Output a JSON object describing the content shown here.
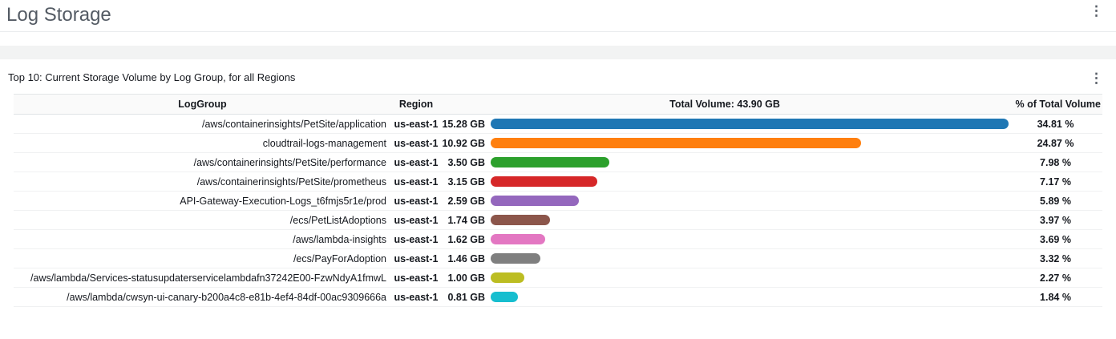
{
  "page": {
    "title": "Log Storage"
  },
  "icons": {
    "kebab": "⋮"
  },
  "widget": {
    "title": "Top 10: Current Storage Volume by Log Group, for all Regions",
    "table": {
      "headers": {
        "log_group": "LogGroup",
        "region": "Region",
        "volume": "Total Volume: 43.90 GB",
        "percent": "% of Total Volume"
      },
      "rows": [
        {
          "log_group": "/aws/containerinsights/PetSite/application",
          "region": "us-east-1",
          "volume": "15.28 GB",
          "percent": "34.81 %",
          "bar_color": "#1f77b4",
          "bar_width_pct": 100
        },
        {
          "log_group": "cloudtrail-logs-management",
          "region": "us-east-1",
          "volume": "10.92 GB",
          "percent": "24.87 %",
          "bar_color": "#ff7f0e",
          "bar_width_pct": 71.5
        },
        {
          "log_group": "/aws/containerinsights/PetSite/performance",
          "region": "us-east-1",
          "volume": "3.50 GB",
          "percent": "7.98 %",
          "bar_color": "#2ca02c",
          "bar_width_pct": 22.9
        },
        {
          "log_group": "/aws/containerinsights/PetSite/prometheus",
          "region": "us-east-1",
          "volume": "3.15 GB",
          "percent": "7.17 %",
          "bar_color": "#d62728",
          "bar_width_pct": 20.6
        },
        {
          "log_group": "API-Gateway-Execution-Logs_t6fmjs5r1e/prod",
          "region": "us-east-1",
          "volume": "2.59 GB",
          "percent": "5.89 %",
          "bar_color": "#9467bd",
          "bar_width_pct": 17.0
        },
        {
          "log_group": "/ecs/PetListAdoptions",
          "region": "us-east-1",
          "volume": "1.74 GB",
          "percent": "3.97 %",
          "bar_color": "#8c564b",
          "bar_width_pct": 11.4
        },
        {
          "log_group": "/aws/lambda-insights",
          "region": "us-east-1",
          "volume": "1.62 GB",
          "percent": "3.69 %",
          "bar_color": "#e377c2",
          "bar_width_pct": 10.6
        },
        {
          "log_group": "/ecs/PayForAdoption",
          "region": "us-east-1",
          "volume": "1.46 GB",
          "percent": "3.32 %",
          "bar_color": "#7f7f7f",
          "bar_width_pct": 9.6
        },
        {
          "log_group": "/aws/lambda/Services-statusupdaterservicelambdafn37242E00-FzwNdyA1fmwL",
          "region": "us-east-1",
          "volume": "1.00 GB",
          "percent": "2.27 %",
          "bar_color": "#bcbd22",
          "bar_width_pct": 6.5
        },
        {
          "log_group": "/aws/lambda/cwsyn-ui-canary-b200a4c8-e81b-4ef4-84df-00ac9309666a",
          "region": "us-east-1",
          "volume": "0.81 GB",
          "percent": "1.84 %",
          "bar_color": "#17becf",
          "bar_width_pct": 5.3
        }
      ]
    }
  },
  "chart_data": {
    "type": "bar",
    "orientation": "horizontal",
    "title": "Top 10: Current Storage Volume by Log Group, for all Regions",
    "total_volume_label": "Total Volume: 43.90 GB",
    "total_volume_gb": 43.9,
    "region": "us-east-1",
    "categories": [
      "/aws/containerinsights/PetSite/application",
      "cloudtrail-logs-management",
      "/aws/containerinsights/PetSite/performance",
      "/aws/containerinsights/PetSite/prometheus",
      "API-Gateway-Execution-Logs_t6fmjs5r1e/prod",
      "/ecs/PetListAdoptions",
      "/aws/lambda-insights",
      "/ecs/PayForAdoption",
      "/aws/lambda/Services-statusupdaterservicelambdafn37242E00-FzwNdyA1fmwL",
      "/aws/lambda/cwsyn-ui-canary-b200a4c8-e81b-4ef4-84df-00ac9309666a"
    ],
    "values_gb": [
      15.28,
      10.92,
      3.5,
      3.15,
      2.59,
      1.74,
      1.62,
      1.46,
      1.0,
      0.81
    ],
    "percent_of_total": [
      34.81,
      24.87,
      7.98,
      7.17,
      5.89,
      3.97,
      3.69,
      3.32,
      2.27,
      1.84
    ],
    "colors": [
      "#1f77b4",
      "#ff7f0e",
      "#2ca02c",
      "#d62728",
      "#9467bd",
      "#8c564b",
      "#e377c2",
      "#7f7f7f",
      "#bcbd22",
      "#17becf"
    ]
  }
}
